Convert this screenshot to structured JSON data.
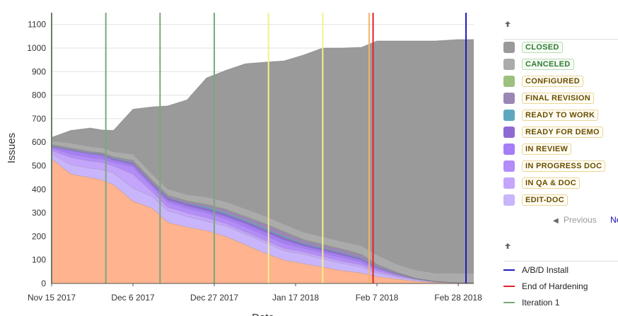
{
  "chart_data": {
    "type": "area",
    "stacked": true,
    "ylabel": "Issues",
    "xlabel": "Date",
    "ylim": [
      0,
      1150
    ],
    "yticks": [
      0,
      100,
      200,
      300,
      400,
      500,
      600,
      700,
      800,
      900,
      1000,
      1100
    ],
    "xlim": [
      "2017-11-15",
      "2018-03-04"
    ],
    "xticks": [
      {
        "date": "2017-11-15",
        "label": "Nov 15 2017"
      },
      {
        "date": "2017-12-06",
        "label": "Dec 6 2017"
      },
      {
        "date": "2017-12-27",
        "label": "Dec 27 2017"
      },
      {
        "date": "2018-01-17",
        "label": "Jan 17 2018"
      },
      {
        "date": "2018-02-07",
        "label": "Feb 7 2018"
      },
      {
        "date": "2018-02-28",
        "label": "Feb 28 2018"
      }
    ],
    "grid": true,
    "legend_position": "right",
    "dates": [
      "2017-11-15",
      "2017-11-20",
      "2017-11-25",
      "2017-11-28",
      "2017-12-01",
      "2017-12-06",
      "2017-12-11",
      "2017-12-15",
      "2017-12-20",
      "2017-12-25",
      "2017-12-30",
      "2018-01-04",
      "2018-01-09",
      "2018-01-14",
      "2018-01-19",
      "2018-01-24",
      "2018-01-29",
      "2018-02-03",
      "2018-02-07",
      "2018-02-12",
      "2018-02-17",
      "2018-02-22",
      "2018-02-28",
      "2018-03-04"
    ],
    "series": [
      {
        "name": "",
        "color": "#ffb38f",
        "values": [
          530,
          465,
          450,
          440,
          420,
          350,
          320,
          260,
          240,
          225,
          200,
          165,
          130,
          100,
          85,
          70,
          55,
          45,
          30,
          20,
          10,
          5,
          3,
          3
        ]
      },
      {
        "name": "EDIT-DOC",
        "color": "#c9b5fb",
        "values": [
          20,
          40,
          40,
          45,
          50,
          55,
          50,
          50,
          45,
          40,
          45,
          45,
          45,
          40,
          40,
          35,
          30,
          25,
          15,
          8,
          5,
          2,
          1,
          1
        ]
      },
      {
        "name": "IN QA & DOC",
        "color": "#c4a5fb",
        "values": [
          15,
          30,
          30,
          30,
          30,
          60,
          20,
          15,
          15,
          15,
          10,
          10,
          10,
          10,
          10,
          10,
          10,
          10,
          8,
          5,
          3,
          1,
          0,
          0
        ]
      },
      {
        "name": "IN PROGRESS DOC",
        "color": "#b38cf9",
        "values": [
          10,
          15,
          15,
          15,
          15,
          30,
          20,
          20,
          20,
          20,
          20,
          20,
          20,
          20,
          15,
          15,
          15,
          10,
          8,
          5,
          2,
          1,
          0,
          0
        ]
      },
      {
        "name": "IN REVIEW",
        "color": "#a57df6",
        "values": [
          5,
          15,
          15,
          15,
          10,
          10,
          10,
          10,
          10,
          10,
          10,
          15,
          15,
          15,
          10,
          10,
          10,
          10,
          5,
          3,
          1,
          0,
          0,
          0
        ]
      },
      {
        "name": "READY FOR DEMO",
        "color": "#8e6bd4",
        "values": [
          3,
          3,
          3,
          3,
          5,
          5,
          5,
          8,
          8,
          10,
          10,
          10,
          10,
          10,
          8,
          8,
          8,
          5,
          3,
          1,
          0,
          0,
          0,
          0
        ]
      },
      {
        "name": "READY TO WORK",
        "color": "#5ea8bf",
        "values": [
          2,
          2,
          2,
          2,
          3,
          3,
          2,
          2,
          2,
          5,
          5,
          5,
          5,
          5,
          3,
          3,
          3,
          3,
          2,
          1,
          0,
          0,
          0,
          0
        ]
      },
      {
        "name": "FINAL REVISION",
        "color": "#9b87b5",
        "values": [
          5,
          5,
          5,
          5,
          5,
          10,
          10,
          10,
          10,
          10,
          15,
          15,
          20,
          20,
          15,
          15,
          15,
          15,
          10,
          5,
          2,
          1,
          0,
          0
        ]
      },
      {
        "name": "CONFIGURED",
        "color": "#9dc07e",
        "values": [
          2,
          2,
          2,
          2,
          2,
          3,
          3,
          3,
          3,
          3,
          3,
          3,
          3,
          3,
          3,
          3,
          3,
          3,
          2,
          1,
          0,
          0,
          0,
          0
        ]
      },
      {
        "name": "CANCELED",
        "color": "#ababab",
        "values": [
          15,
          20,
          20,
          20,
          20,
          25,
          25,
          25,
          25,
          30,
          30,
          30,
          30,
          30,
          30,
          30,
          30,
          35,
          40,
          35,
          35,
          35,
          40,
          40
        ]
      },
      {
        "name": "CLOSED",
        "color": "#9a9a9a",
        "values": [
          13,
          53,
          78,
          75,
          90,
          189,
          285,
          351,
          402,
          505,
          557,
          615,
          652,
          692,
          751,
          801,
          821,
          842,
          907,
          946,
          972,
          985,
          992,
          992
        ]
      }
    ],
    "markers": [
      {
        "date": "2017-11-15",
        "color": "#7aa87a"
      },
      {
        "date": "2017-11-29",
        "color": "#7aa87a"
      },
      {
        "date": "2017-12-13",
        "color": "#7aa87a"
      },
      {
        "date": "2017-12-27",
        "color": "#7aa87a"
      },
      {
        "date": "2018-01-10",
        "color": "#f7f08a"
      },
      {
        "date": "2018-01-24",
        "color": "#f7f08a"
      },
      {
        "date": "2018-02-05",
        "color": "#f5b26b"
      },
      {
        "date": "2018-02-06",
        "color": "#e3202a"
      },
      {
        "date": "2018-03-02",
        "color": "#1c1cc0"
      }
    ]
  },
  "legend": {
    "items": [
      {
        "label": "CLOSED",
        "color": "#9a9a9a",
        "style": "green"
      },
      {
        "label": "CANCELED",
        "color": "#ababab",
        "style": "green"
      },
      {
        "label": "CONFIGURED",
        "color": "#9dc07e",
        "style": "yellow"
      },
      {
        "label": "FINAL REVISION",
        "color": "#9b87b5",
        "style": "yellow"
      },
      {
        "label": "READY TO WORK",
        "color": "#5ea8bf",
        "style": "yellow"
      },
      {
        "label": "READY FOR DEMO",
        "color": "#8e6bd4",
        "style": "yellow"
      },
      {
        "label": "IN REVIEW",
        "color": "#a57df6",
        "style": "yellow"
      },
      {
        "label": "IN PROGRESS DOC",
        "color": "#b38cf9",
        "style": "yellow"
      },
      {
        "label": "IN QA & DOC",
        "color": "#c4a5fb",
        "style": "yellow"
      },
      {
        "label": "EDIT-DOC",
        "color": "#c9b5fb",
        "style": "yellow"
      }
    ],
    "pager": {
      "previous_label": "Previous",
      "next_label": "Ne:"
    },
    "marker_items": [
      {
        "label": "A/B/D Install",
        "color": "#1c1cc0"
      },
      {
        "label": "End of Hardening",
        "color": "#e3202a"
      },
      {
        "label": "Iteration 1",
        "color": "#7aa87a"
      }
    ]
  }
}
